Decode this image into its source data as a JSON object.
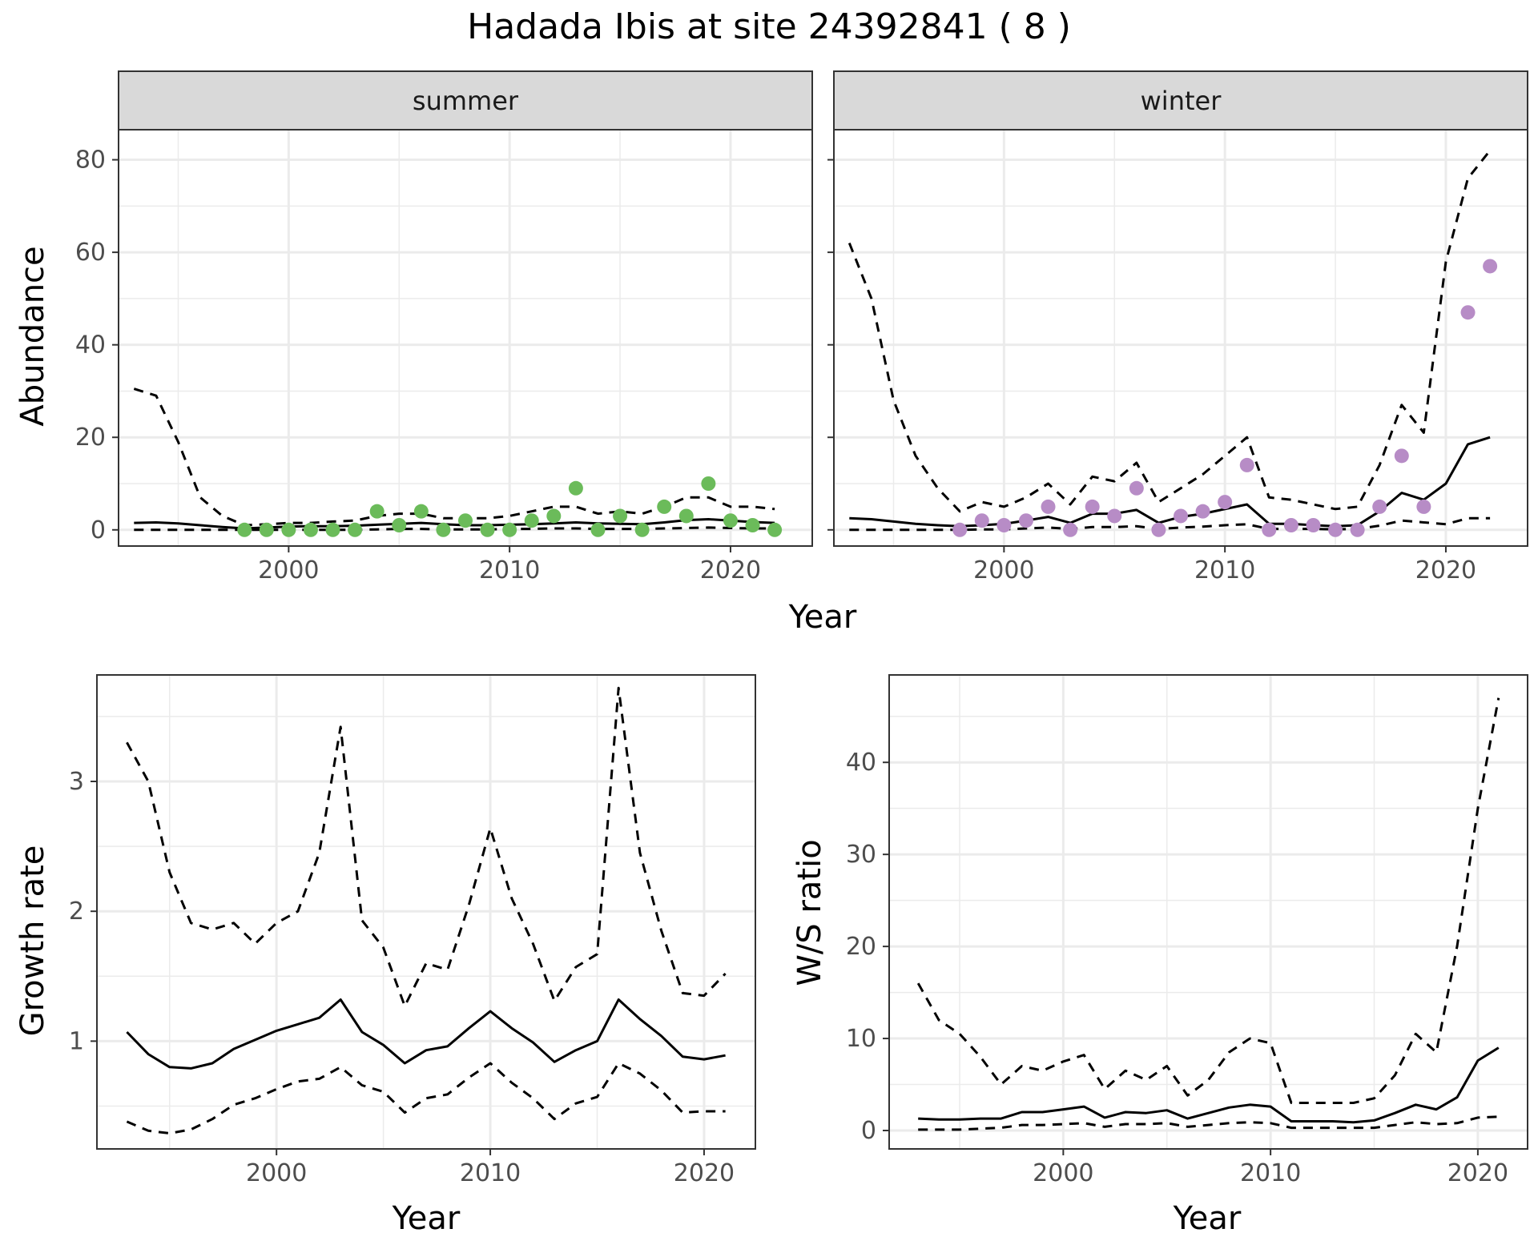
{
  "title": "Hadada Ibis at site 24392841 ( 8 )",
  "colors": {
    "summer_points": "#6BBB5A",
    "winter_points": "#B78CC6",
    "lines": "#000000",
    "strip_bg": "#D9D9D9",
    "grid": "#EBEBEB"
  },
  "chart_data": [
    {
      "type": "line",
      "facet": "summer",
      "xlabel": "Year",
      "ylabel": "Abundance",
      "xlim": [
        1992.3,
        2023.7
      ],
      "ylim": [
        -3.5,
        86.5
      ],
      "xticks": [
        2000,
        2010,
        2020
      ],
      "yticks": [
        0,
        20,
        40,
        60,
        80
      ],
      "grid": true,
      "series": [
        {
          "style": "solid",
          "x": [
            1993,
            1994,
            1995,
            1996,
            1997,
            1998,
            1999,
            2000,
            2001,
            2002,
            2003,
            2004,
            2005,
            2006,
            2007,
            2008,
            2009,
            2010,
            2011,
            2012,
            2013,
            2014,
            2015,
            2016,
            2017,
            2018,
            2019,
            2020,
            2021,
            2022
          ],
          "y": [
            1.5,
            1.6,
            1.4,
            1.0,
            0.6,
            0.3,
            0.5,
            0.7,
            0.8,
            0.8,
            0.9,
            1.1,
            1.3,
            1.5,
            1.2,
            1.0,
            1.0,
            1.1,
            1.2,
            1.4,
            1.6,
            1.4,
            1.3,
            1.2,
            1.6,
            2.1,
            2.3,
            2.0,
            1.7,
            1.5
          ]
        },
        {
          "style": "dashed",
          "x": [
            1993,
            1994,
            1995,
            1996,
            1997,
            1998,
            1999,
            2000,
            2001,
            2002,
            2003,
            2004,
            2005,
            2006,
            2007,
            2008,
            2009,
            2010,
            2011,
            2012,
            2013,
            2014,
            2015,
            2016,
            2017,
            2018,
            2019,
            2020,
            2021,
            2022
          ],
          "y": [
            30.5,
            29.0,
            19.0,
            7.0,
            3.0,
            1.0,
            1.2,
            1.5,
            1.5,
            1.8,
            2.0,
            3.0,
            3.5,
            3.5,
            2.5,
            2.5,
            2.5,
            3.0,
            4.0,
            5.0,
            5.0,
            3.5,
            4.0,
            3.5,
            5.0,
            7.0,
            7.0,
            5.0,
            5.0,
            4.5
          ]
        },
        {
          "style": "dashed",
          "x": [
            1993,
            1994,
            1995,
            1996,
            1997,
            1998,
            1999,
            2000,
            2001,
            2002,
            2003,
            2004,
            2005,
            2006,
            2007,
            2008,
            2009,
            2010,
            2011,
            2012,
            2013,
            2014,
            2015,
            2016,
            2017,
            2018,
            2019,
            2020,
            2021,
            2022
          ],
          "y": [
            0,
            0,
            0,
            0,
            0,
            0,
            0,
            0,
            0,
            0,
            0,
            0.1,
            0.2,
            0.2,
            0.1,
            0.1,
            0.1,
            0.2,
            0.2,
            0.3,
            0.3,
            0.2,
            0.2,
            0.2,
            0.3,
            0.4,
            0.5,
            0.4,
            0.3,
            0.3
          ]
        }
      ],
      "points": {
        "x": [
          1998,
          1999,
          2000,
          2001,
          2002,
          2003,
          2004,
          2005,
          2006,
          2007,
          2008,
          2009,
          2010,
          2011,
          2012,
          2013,
          2014,
          2015,
          2016,
          2017,
          2018,
          2019,
          2020,
          2021,
          2022
        ],
        "y": [
          0,
          0,
          0,
          0,
          0,
          0,
          4,
          1,
          4,
          0,
          2,
          0,
          0,
          2,
          3,
          9,
          0,
          3,
          0,
          5,
          3,
          10,
          2,
          1,
          0
        ]
      }
    },
    {
      "type": "line",
      "facet": "winter",
      "xlabel": "Year",
      "ylabel": "Abundance",
      "xlim": [
        1992.3,
        2023.7
      ],
      "ylim": [
        -3.5,
        86.5
      ],
      "xticks": [
        2000,
        2010,
        2020
      ],
      "yticks": [
        0,
        20,
        40,
        60,
        80
      ],
      "grid": true,
      "series": [
        {
          "style": "solid",
          "x": [
            1993,
            1994,
            1995,
            1996,
            1997,
            1998,
            1999,
            2000,
            2001,
            2002,
            2003,
            2004,
            2005,
            2006,
            2007,
            2008,
            2009,
            2010,
            2011,
            2012,
            2013,
            2014,
            2015,
            2016,
            2017,
            2018,
            2019,
            2020,
            2021,
            2022
          ],
          "y": [
            2.5,
            2.3,
            1.8,
            1.3,
            1.0,
            0.8,
            1.0,
            1.3,
            2.0,
            2.8,
            1.5,
            3.5,
            3.5,
            4.3,
            1.5,
            2.8,
            3.5,
            4.5,
            5.5,
            1.3,
            1.3,
            1.0,
            0.8,
            1.0,
            4.0,
            8.0,
            6.5,
            10.0,
            18.5,
            20.0
          ]
        },
        {
          "style": "dashed",
          "x": [
            1993,
            1994,
            1995,
            1996,
            1997,
            1998,
            1999,
            2000,
            2001,
            2002,
            2003,
            2004,
            2005,
            2006,
            2007,
            2008,
            2009,
            2010,
            2011,
            2012,
            2013,
            2014,
            2015,
            2016,
            2017,
            2018,
            2019,
            2020,
            2021,
            2022
          ],
          "y": [
            62,
            50,
            28,
            16,
            9,
            4,
            6,
            5,
            7,
            10,
            5.5,
            11.5,
            10.5,
            14.5,
            6,
            9,
            12,
            16,
            20,
            7,
            6.5,
            5.5,
            4.5,
            5,
            14,
            27,
            21,
            58,
            76,
            82
          ]
        },
        {
          "style": "dashed",
          "x": [
            1993,
            1994,
            1995,
            1996,
            1997,
            1998,
            1999,
            2000,
            2001,
            2002,
            2003,
            2004,
            2005,
            2006,
            2007,
            2008,
            2009,
            2010,
            2011,
            2012,
            2013,
            2014,
            2015,
            2016,
            2017,
            2018,
            2019,
            2020,
            2021,
            2022
          ],
          "y": [
            0,
            0,
            0,
            0,
            0,
            0,
            0.1,
            0.1,
            0.3,
            0.5,
            0.2,
            0.6,
            0.6,
            0.8,
            0.2,
            0.5,
            0.7,
            1.0,
            1.2,
            0.2,
            0.2,
            0.2,
            0.1,
            0.2,
            0.9,
            2.0,
            1.6,
            1.2,
            2.5,
            2.5
          ]
        }
      ],
      "points": {
        "x": [
          1998,
          1999,
          2000,
          2001,
          2002,
          2003,
          2004,
          2005,
          2006,
          2007,
          2008,
          2009,
          2010,
          2011,
          2012,
          2013,
          2014,
          2015,
          2016,
          2017,
          2018,
          2019,
          2021,
          2022
        ],
        "y": [
          0,
          2,
          1,
          2,
          5,
          0,
          5,
          3,
          9,
          0,
          3,
          4,
          6,
          14,
          0,
          1,
          1,
          0,
          0,
          5,
          16,
          5,
          47,
          57
        ]
      }
    },
    {
      "type": "line",
      "xlabel": "Year",
      "ylabel": "Growth rate",
      "xlim": [
        1991.6,
        2022.4
      ],
      "ylim": [
        0.17,
        3.82
      ],
      "xticks": [
        2000,
        2010,
        2020
      ],
      "yticks": [
        1,
        2,
        3
      ],
      "grid": true,
      "series": [
        {
          "style": "solid",
          "x": [
            1993,
            1994,
            1995,
            1996,
            1997,
            1998,
            1999,
            2000,
            2001,
            2002,
            2003,
            2004,
            2005,
            2006,
            2007,
            2008,
            2009,
            2010,
            2011,
            2012,
            2013,
            2014,
            2015,
            2016,
            2017,
            2018,
            2019,
            2020,
            2021
          ],
          "y": [
            1.07,
            0.9,
            0.8,
            0.79,
            0.83,
            0.94,
            1.01,
            1.08,
            1.13,
            1.18,
            1.32,
            1.07,
            0.97,
            0.83,
            0.93,
            0.96,
            1.1,
            1.23,
            1.1,
            0.99,
            0.84,
            0.93,
            1.0,
            1.32,
            1.17,
            1.04,
            0.88,
            0.86,
            0.89
          ]
        },
        {
          "style": "dashed",
          "x": [
            1993,
            1994,
            1995,
            1996,
            1997,
            1998,
            1999,
            2000,
            2001,
            2002,
            2003,
            2004,
            2005,
            2006,
            2007,
            2008,
            2009,
            2010,
            2011,
            2012,
            2013,
            2014,
            2015,
            2016,
            2017,
            2018,
            2019,
            2020,
            2021
          ],
          "y": [
            3.3,
            3.0,
            2.3,
            1.91,
            1.86,
            1.91,
            1.75,
            1.91,
            2.0,
            2.45,
            3.42,
            1.93,
            1.72,
            1.27,
            1.6,
            1.55,
            2.05,
            2.64,
            2.1,
            1.75,
            1.31,
            1.57,
            1.67,
            3.72,
            2.45,
            1.85,
            1.37,
            1.35,
            1.52
          ]
        },
        {
          "style": "dashed",
          "x": [
            1993,
            1994,
            1995,
            1996,
            1997,
            1998,
            1999,
            2000,
            2001,
            2002,
            2003,
            2004,
            2005,
            2006,
            2007,
            2008,
            2009,
            2010,
            2011,
            2012,
            2013,
            2014,
            2015,
            2016,
            2017,
            2018,
            2019,
            2020,
            2021
          ],
          "y": [
            0.38,
            0.31,
            0.29,
            0.32,
            0.4,
            0.51,
            0.56,
            0.63,
            0.69,
            0.71,
            0.8,
            0.66,
            0.61,
            0.45,
            0.56,
            0.59,
            0.72,
            0.83,
            0.68,
            0.56,
            0.4,
            0.52,
            0.57,
            0.83,
            0.75,
            0.62,
            0.45,
            0.46,
            0.46
          ]
        }
      ]
    },
    {
      "type": "line",
      "xlabel": "Year",
      "ylabel": "W/S ratio",
      "xlim": [
        1991.6,
        2022.4
      ],
      "ylim": [
        -2.0,
        49.5
      ],
      "xticks": [
        2000,
        2010,
        2020
      ],
      "yticks": [
        0,
        10,
        20,
        30,
        40
      ],
      "grid": true,
      "series": [
        {
          "style": "solid",
          "x": [
            1993,
            1994,
            1995,
            1996,
            1997,
            1998,
            1999,
            2000,
            2001,
            2002,
            2003,
            2004,
            2005,
            2006,
            2007,
            2008,
            2009,
            2010,
            2011,
            2012,
            2013,
            2014,
            2015,
            2016,
            2017,
            2018,
            2019,
            2020,
            2021
          ],
          "y": [
            1.3,
            1.2,
            1.2,
            1.3,
            1.3,
            2.0,
            2.0,
            2.3,
            2.6,
            1.4,
            2.0,
            1.9,
            2.2,
            1.3,
            1.9,
            2.5,
            2.8,
            2.6,
            1.0,
            1.0,
            1.0,
            0.9,
            1.1,
            1.9,
            2.8,
            2.3,
            3.6,
            7.6,
            9.0
          ]
        },
        {
          "style": "dashed",
          "x": [
            1993,
            1994,
            1995,
            1996,
            1997,
            1998,
            1999,
            2000,
            2001,
            2002,
            2003,
            2004,
            2005,
            2006,
            2007,
            2008,
            2009,
            2010,
            2011,
            2012,
            2013,
            2014,
            2015,
            2016,
            2017,
            2018,
            2019,
            2020,
            2021
          ],
          "y": [
            16,
            12,
            10.5,
            8,
            5,
            7,
            6.5,
            7.5,
            8.2,
            4.5,
            6.5,
            5.5,
            7,
            3.8,
            5.5,
            8.5,
            10,
            9.5,
            3,
            3,
            3,
            3,
            3.5,
            6,
            10.5,
            8.5,
            20,
            35,
            47
          ]
        },
        {
          "style": "dashed",
          "x": [
            1993,
            1994,
            1995,
            1996,
            1997,
            1998,
            1999,
            2000,
            2001,
            2002,
            2003,
            2004,
            2005,
            2006,
            2007,
            2008,
            2009,
            2010,
            2011,
            2012,
            2013,
            2014,
            2015,
            2016,
            2017,
            2018,
            2019,
            2020,
            2021
          ],
          "y": [
            0.1,
            0.1,
            0.1,
            0.2,
            0.3,
            0.6,
            0.6,
            0.7,
            0.8,
            0.4,
            0.7,
            0.7,
            0.8,
            0.4,
            0.6,
            0.8,
            0.9,
            0.8,
            0.3,
            0.3,
            0.3,
            0.3,
            0.3,
            0.6,
            0.9,
            0.7,
            0.8,
            1.4,
            1.5
          ]
        }
      ]
    }
  ]
}
